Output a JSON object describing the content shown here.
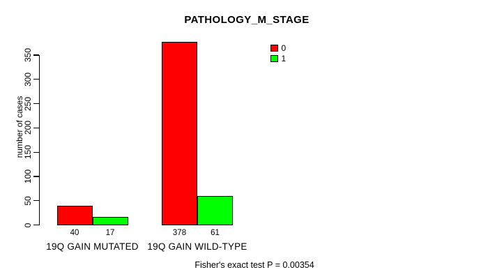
{
  "title": "PATHOLOGY_M_STAGE",
  "colors": {
    "series0": "#FF0000",
    "series1": "#00FF00",
    "axis": "#000000",
    "background": "#FFFFFF"
  },
  "chart_data": {
    "type": "bar",
    "title": "PATHOLOGY_M_STAGE",
    "categories": [
      "19Q GAIN MUTATED",
      "19Q GAIN WILD-TYPE"
    ],
    "series": [
      {
        "name": "0",
        "color": "#FF0000",
        "values": [
          40,
          378
        ]
      },
      {
        "name": "1",
        "color": "#00FF00",
        "values": [
          17,
          61
        ]
      }
    ],
    "xlabel": "",
    "ylabel": "number of cases",
    "ylim": [
      0,
      350
    ],
    "yticks": [
      0,
      50,
      100,
      150,
      200,
      250,
      300,
      350
    ],
    "bar_value_labels_shown": true,
    "grid": false,
    "legend_position": "top-right"
  },
  "legend": {
    "items": [
      {
        "label": "0",
        "color": "#FF0000"
      },
      {
        "label": "1",
        "color": "#00FF00"
      }
    ]
  },
  "footer": {
    "text": "Fisher's exact test P = 0.00354"
  }
}
